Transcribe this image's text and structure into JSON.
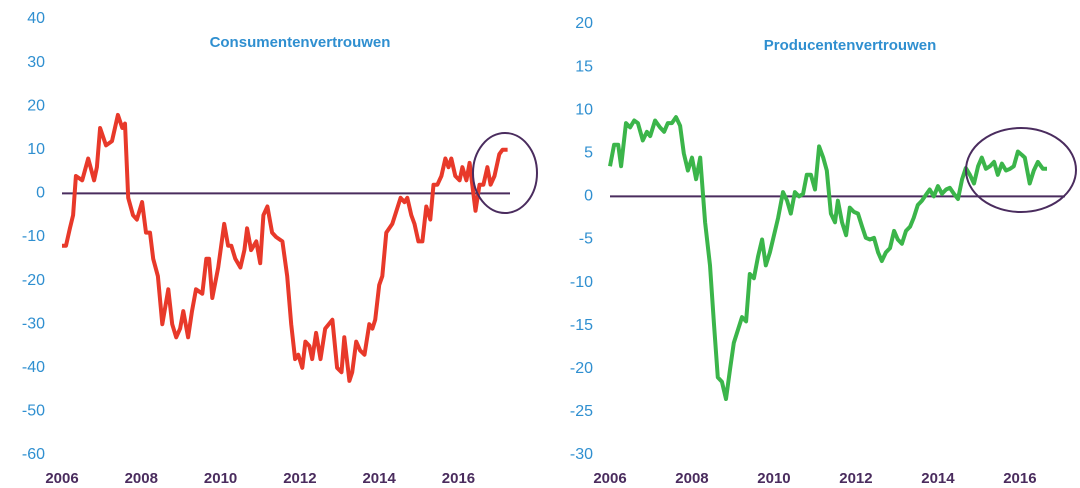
{
  "chart_data": [
    {
      "type": "line",
      "title": "Consumentenvertrouwen",
      "xlim": [
        2006,
        2017.3
      ],
      "xticks": [
        2006,
        2008,
        2010,
        2012,
        2014,
        2016
      ],
      "ylim": [
        -60,
        40
      ],
      "yticks": [
        -60,
        -50,
        -40,
        -30,
        -20,
        -10,
        0,
        10,
        20,
        30,
        40
      ],
      "series": [
        {
          "color": "#e8392a",
          "x": [
            2006.0,
            2006.1,
            2006.2,
            2006.28,
            2006.35,
            2006.51,
            2006.66,
            2006.81,
            2006.88,
            2006.96,
            2007.11,
            2007.26,
            2007.41,
            2007.52,
            2007.59,
            2007.67,
            2007.79,
            2007.89,
            2008.02,
            2008.12,
            2008.22,
            2008.3,
            2008.42,
            2008.53,
            2008.68,
            2008.78,
            2008.88,
            2008.98,
            2009.06,
            2009.18,
            2009.28,
            2009.38,
            2009.54,
            2009.64,
            2009.71,
            2009.79,
            2009.94,
            2010.09,
            2010.19,
            2010.27,
            2010.37,
            2010.5,
            2010.6,
            2010.67,
            2010.77,
            2010.9,
            2011.0,
            2011.08,
            2011.18,
            2011.3,
            2011.4,
            2011.56,
            2011.68,
            2011.78,
            2011.88,
            2011.96,
            2012.06,
            2012.14,
            2012.24,
            2012.31,
            2012.41,
            2012.52,
            2012.64,
            2012.82,
            2012.94,
            2013.05,
            2013.12,
            2013.25,
            2013.32,
            2013.42,
            2013.52,
            2013.63,
            2013.75,
            2013.83,
            2013.9,
            2014.0,
            2014.08,
            2014.18,
            2014.33,
            2014.54,
            2014.64,
            2014.71,
            2014.81,
            2014.89,
            2014.99,
            2015.09,
            2015.19,
            2015.29,
            2015.37,
            2015.47,
            2015.57,
            2015.67,
            2015.75,
            2015.82,
            2015.92,
            2016.03,
            2016.1,
            2016.2,
            2016.28,
            2016.43,
            2016.53,
            2016.63,
            2016.73,
            2016.81,
            2016.91,
            2017.03,
            2017.11,
            2017.24
          ],
          "values": [
            -12,
            -12,
            -8,
            -5,
            4,
            3,
            8,
            3,
            6,
            15,
            11,
            12,
            18,
            15,
            16,
            -1,
            -5,
            -6,
            -2,
            -9,
            -9,
            -15,
            -19,
            -30,
            -22,
            -30,
            -33,
            -31,
            -27,
            -33,
            -27,
            -22,
            -23,
            -15,
            -15,
            -24,
            -17,
            -7,
            -12,
            -12,
            -15,
            -17,
            -13,
            -8,
            -13,
            -11,
            -16,
            -5,
            -3,
            -9,
            -10,
            -11,
            -19,
            -30,
            -38,
            -37,
            -40,
            -34,
            -35,
            -38,
            -32,
            -38,
            -31,
            -29,
            -40,
            -41,
            -33,
            -43,
            -41,
            -34,
            -36,
            -37,
            -30,
            -31,
            -29,
            -21,
            -19,
            -9,
            -7,
            -1,
            -2,
            -1,
            -5,
            -7,
            -11,
            -11,
            -3,
            -6,
            2,
            2,
            4,
            8,
            6,
            8,
            4,
            3,
            6,
            3,
            7,
            -4,
            2,
            2,
            6,
            2,
            4,
            9,
            10,
            10
          ]
        }
      ]
    },
    {
      "type": "line",
      "title": "Producentenvertrouwen",
      "xlim": [
        2006,
        2017.1
      ],
      "xticks": [
        2006,
        2008,
        2010,
        2012,
        2014,
        2016
      ],
      "ylim": [
        -30,
        20
      ],
      "yticks": [
        -30,
        -25,
        -20,
        -15,
        -10,
        -5,
        0,
        5,
        10,
        15,
        20
      ],
      "series": [
        {
          "color": "#3bb54a",
          "x": [
            2006.0,
            2006.1,
            2006.2,
            2006.27,
            2006.39,
            2006.49,
            2006.59,
            2006.68,
            2006.8,
            2006.9,
            2006.98,
            2007.1,
            2007.22,
            2007.32,
            2007.41,
            2007.51,
            2007.61,
            2007.71,
            2007.8,
            2007.9,
            2008.0,
            2008.1,
            2008.2,
            2008.32,
            2008.44,
            2008.54,
            2008.63,
            2008.73,
            2008.83,
            2008.93,
            2009.02,
            2009.12,
            2009.22,
            2009.32,
            2009.41,
            2009.51,
            2009.61,
            2009.71,
            2009.8,
            2009.9,
            2010.0,
            2010.1,
            2010.22,
            2010.32,
            2010.41,
            2010.51,
            2010.61,
            2010.71,
            2010.8,
            2010.9,
            2011.0,
            2011.1,
            2011.2,
            2011.29,
            2011.39,
            2011.49,
            2011.56,
            2011.66,
            2011.76,
            2011.85,
            2011.95,
            2012.05,
            2012.15,
            2012.24,
            2012.34,
            2012.44,
            2012.54,
            2012.63,
            2012.73,
            2012.83,
            2012.93,
            2013.02,
            2013.12,
            2013.22,
            2013.32,
            2013.41,
            2013.51,
            2013.61,
            2013.71,
            2013.8,
            2013.9,
            2014.0,
            2014.1,
            2014.2,
            2014.29,
            2014.39,
            2014.49,
            2014.59,
            2014.68,
            2014.78,
            2014.88,
            2014.98,
            2015.07,
            2015.17,
            2015.27,
            2015.37,
            2015.46,
            2015.56,
            2015.66,
            2015.76,
            2015.85,
            2015.95,
            2016.05,
            2016.12,
            2016.24,
            2016.34,
            2016.44,
            2016.56,
            2016.66
          ],
          "values": [
            3.5,
            6,
            6,
            3.5,
            8.5,
            8,
            8.8,
            8.5,
            6.5,
            7.5,
            7,
            8.8,
            8,
            7.5,
            8.5,
            8.5,
            9.2,
            8.2,
            5,
            3,
            4.5,
            2,
            4.5,
            -3,
            -8,
            -15,
            -21,
            -21.5,
            -23.5,
            -20,
            -17,
            -15.5,
            -14,
            -14.5,
            -9,
            -9.5,
            -7,
            -5,
            -8,
            -6.5,
            -4.5,
            -2.5,
            0.5,
            -0.5,
            -2,
            0.5,
            0,
            0.3,
            2.5,
            2.5,
            0.8,
            5.8,
            4.5,
            3,
            -2,
            -3,
            -0.5,
            -3,
            -4.5,
            -1.3,
            -1.8,
            -2,
            -3.5,
            -4.8,
            -5,
            -4.8,
            -6.5,
            -7.5,
            -6.5,
            -6,
            -4,
            -5,
            -5.5,
            -4,
            -3.5,
            -2.5,
            -1,
            -0.5,
            0.2,
            0.8,
            0,
            1.2,
            0.3,
            0.8,
            1,
            0.3,
            -0.3,
            2,
            3.3,
            2.5,
            1.5,
            3.5,
            4.5,
            3.2,
            3.5,
            4,
            2.5,
            3.8,
            3,
            3.2,
            3.5,
            5.2,
            4.8,
            4.5,
            1.5,
            3,
            4,
            3.2,
            3.2
          ]
        }
      ]
    }
  ]
}
